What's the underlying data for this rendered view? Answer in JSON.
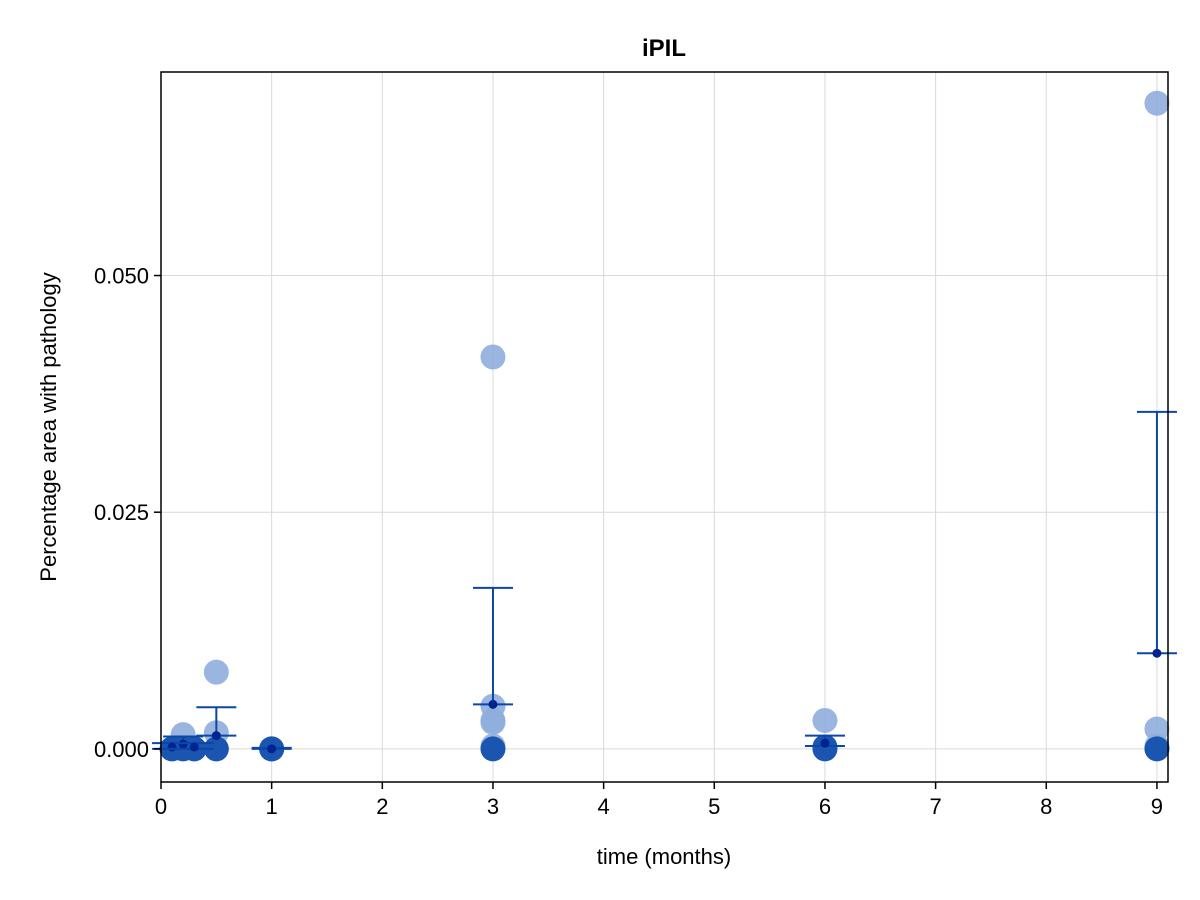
{
  "chart_data": {
    "type": "scatter",
    "title": "iPIL",
    "xlabel": "time (months)",
    "ylabel": "Percentage area with pathology",
    "xlim": [
      0,
      9.1
    ],
    "ylim": [
      -0.0035,
      0.0715
    ],
    "grid": true,
    "x_ticks": [
      0,
      1,
      2,
      3,
      4,
      5,
      6,
      7,
      8,
      9
    ],
    "y_ticks": [
      0.0,
      0.025,
      0.05
    ],
    "x_tick_labels": [
      "0",
      "1",
      "2",
      "3",
      "4",
      "5",
      "6",
      "7",
      "8",
      "9"
    ],
    "y_tick_labels": [
      "0.000",
      "0.025",
      "0.050"
    ],
    "colors": {
      "light_points": "#8FAEDD",
      "dark_points": "#1A56B0",
      "error_bars": "#0A47A8",
      "mean_marker": "#00238F",
      "grid": "#D9D9D9"
    },
    "series": [
      {
        "style": "light",
        "points": [
          {
            "x": 0.1,
            "y": 0.0
          },
          {
            "x": 0.2,
            "y": 0.0015
          },
          {
            "x": 0.3,
            "y": 0.0
          },
          {
            "x": 0.5,
            "y": 0.0081
          },
          {
            "x": 0.5,
            "y": 0.0017
          },
          {
            "x": 0.5,
            "y": 0.0
          },
          {
            "x": 3.0,
            "y": 0.0414
          },
          {
            "x": 3.0,
            "y": 0.0045
          },
          {
            "x": 3.0,
            "y": 0.003
          },
          {
            "x": 3.0,
            "y": 0.0028
          },
          {
            "x": 3.0,
            "y": 0.0003
          },
          {
            "x": 6.0,
            "y": 0.003
          },
          {
            "x": 9.0,
            "y": 0.0682
          },
          {
            "x": 9.0,
            "y": 0.0021
          },
          {
            "x": 9.0,
            "y": 0.0003
          }
        ]
      },
      {
        "style": "dark",
        "points": [
          {
            "x": 0.1,
            "y": 0.0
          },
          {
            "x": 0.2,
            "y": 0.0
          },
          {
            "x": 0.3,
            "y": 0.0
          },
          {
            "x": 0.5,
            "y": 0.0
          },
          {
            "x": 1.0,
            "y": 0.0
          },
          {
            "x": 1.0,
            "y": 0.0
          },
          {
            "x": 3.0,
            "y": 0.0
          },
          {
            "x": 6.0,
            "y": 0.0
          },
          {
            "x": 6.0,
            "y": 0.0002
          },
          {
            "x": 9.0,
            "y": 0.0
          }
        ]
      }
    ],
    "error_bars": [
      {
        "x": 0.1,
        "mean": 0.0002,
        "lower": 0.0,
        "upper": 0.0006
      },
      {
        "x": 0.2,
        "mean": 0.0005,
        "lower": 0.0,
        "upper": 0.0013
      },
      {
        "x": 0.3,
        "mean": 0.0002,
        "lower": 0.0,
        "upper": 0.0006
      },
      {
        "x": 0.5,
        "mean": 0.0014,
        "lower": 0.0014,
        "upper": 0.0044
      },
      {
        "x": 1.0,
        "mean": 0.0,
        "lower": 0.0,
        "upper": 0.0001
      },
      {
        "x": 3.0,
        "mean": 0.0047,
        "lower": 0.0047,
        "upper": 0.017
      },
      {
        "x": 6.0,
        "mean": 0.0006,
        "lower": 0.0003,
        "upper": 0.0014
      },
      {
        "x": 9.0,
        "mean": 0.0101,
        "lower": 0.0101,
        "upper": 0.0356
      }
    ]
  }
}
